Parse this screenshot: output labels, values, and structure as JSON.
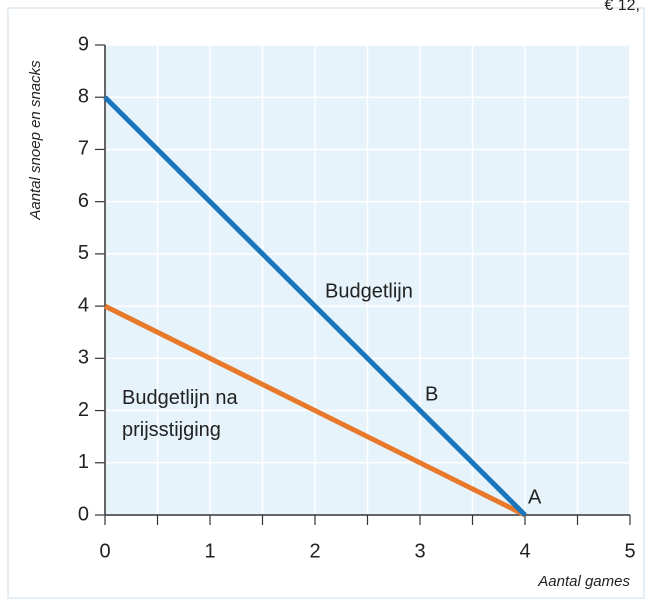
{
  "chart_data": {
    "type": "line",
    "corner_text": "€ 12,",
    "x_label": "Aantal games",
    "y_label": "Aantal snoep en snacks",
    "x": [
      0,
      4
    ],
    "series": [
      {
        "name": "Budgetlijn",
        "color": "#1a76bc",
        "values": [
          8,
          0
        ]
      },
      {
        "name": "Budgetlijn na prijsstijging",
        "color": "#e8792a",
        "values": [
          4,
          0
        ]
      }
    ],
    "annotations": [
      "B",
      "A"
    ],
    "xlim": [
      0,
      5
    ],
    "ylim": [
      0,
      9
    ],
    "xticks": [
      0,
      1,
      2,
      3,
      4,
      5
    ],
    "xminorticks": [
      0.5,
      1.5,
      2.5,
      3.5,
      4.5
    ],
    "yticks": [
      0,
      1,
      2,
      3,
      4,
      5,
      6,
      7,
      8,
      9
    ],
    "grid": true
  }
}
